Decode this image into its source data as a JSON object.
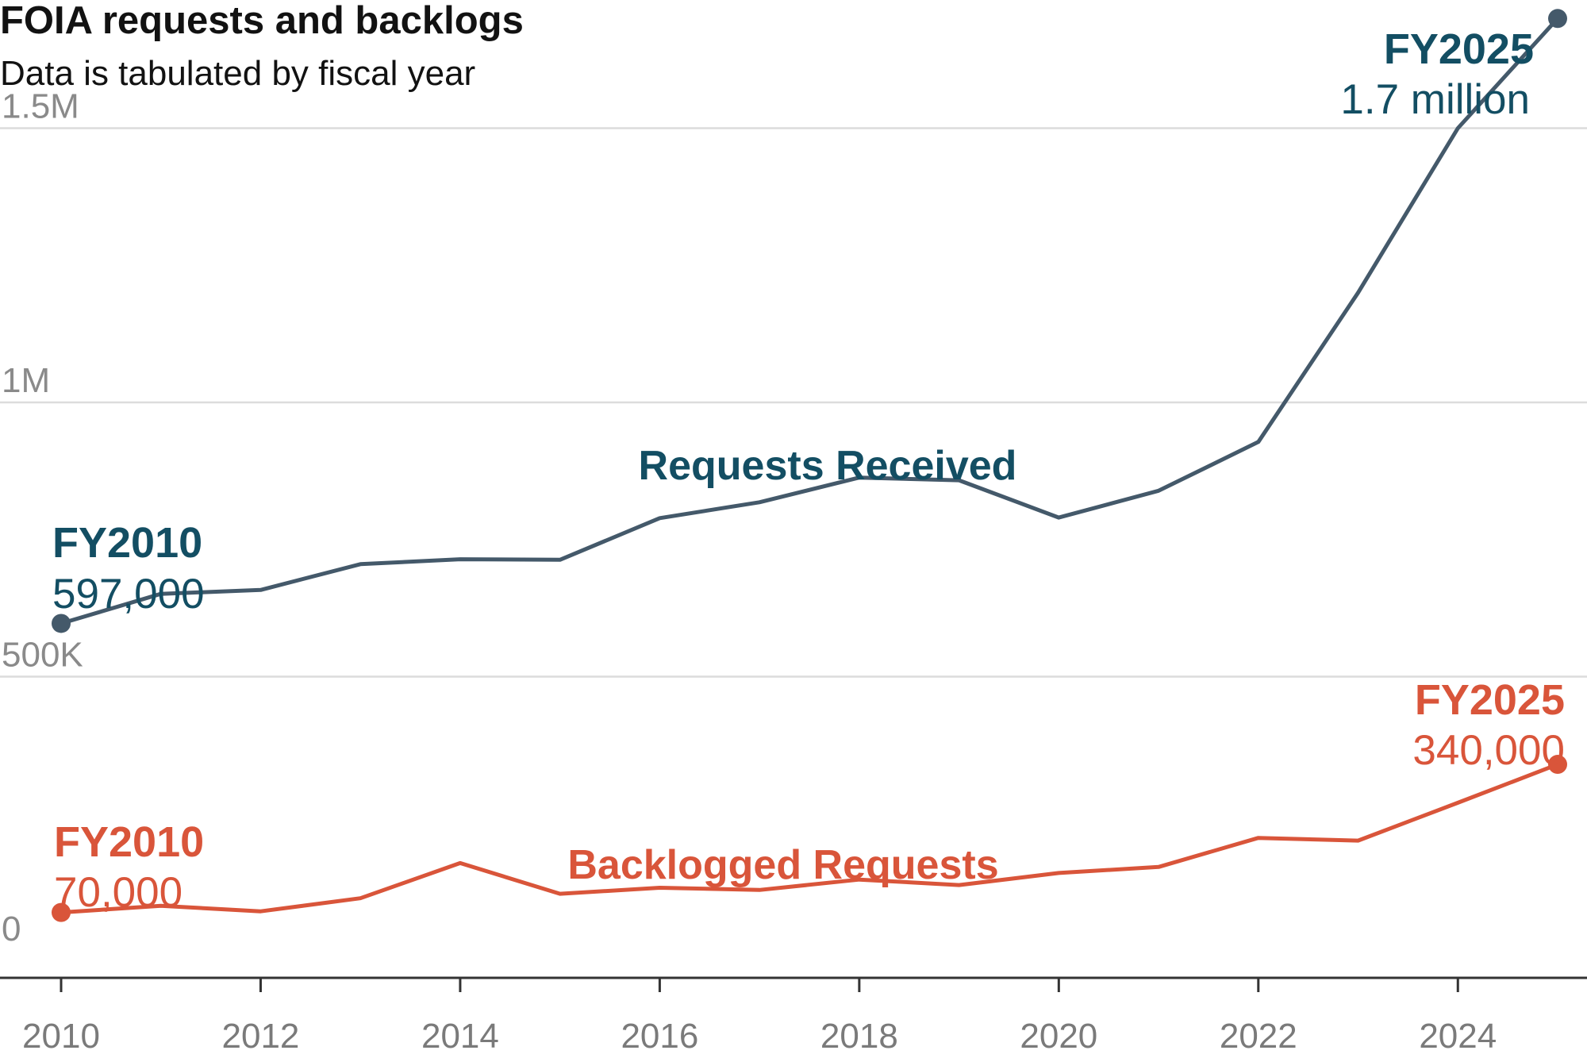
{
  "colors": {
    "requests": "#44596a",
    "requests_text": "#134e63",
    "backlog": "#d9553a"
  },
  "chart_data": {
    "type": "line",
    "title": "FOIA requests and backlogs",
    "subtitle": "Data is tabulated by fiscal year",
    "x": [
      2010,
      2011,
      2012,
      2013,
      2014,
      2015,
      2016,
      2017,
      2018,
      2019,
      2020,
      2021,
      2022,
      2023,
      2024,
      2025
    ],
    "x_ticks": [
      "2010",
      "2012",
      "2014",
      "2016",
      "2018",
      "2020",
      "2022",
      "2024"
    ],
    "y_ticks": [
      {
        "value": 0,
        "label": "0"
      },
      {
        "value": 500000,
        "label": "500K"
      },
      {
        "value": 1000000,
        "label": "1M"
      },
      {
        "value": 1500000,
        "label": "1.5M"
      }
    ],
    "ylim": [
      0,
      1700000
    ],
    "grid": true,
    "series": [
      {
        "name": "Requests Received",
        "values": [
          597000,
          651000,
          658000,
          705000,
          714000,
          713000,
          789000,
          818000,
          863000,
          858000,
          790000,
          839000,
          928000,
          1200000,
          1500000,
          1700000
        ],
        "start_label": "FY2010",
        "start_value": "597,000",
        "end_label": "FY2025",
        "end_value": "1.7 million"
      },
      {
        "name": "Backlogged Requests",
        "values": [
          70000,
          82000,
          72000,
          96000,
          160000,
          104000,
          115000,
          111000,
          130000,
          120000,
          142000,
          153000,
          206000,
          201000,
          270000,
          340000
        ],
        "start_label": "FY2010",
        "start_value": "70,000",
        "end_label": "FY2025",
        "end_value": "340,000"
      }
    ]
  }
}
